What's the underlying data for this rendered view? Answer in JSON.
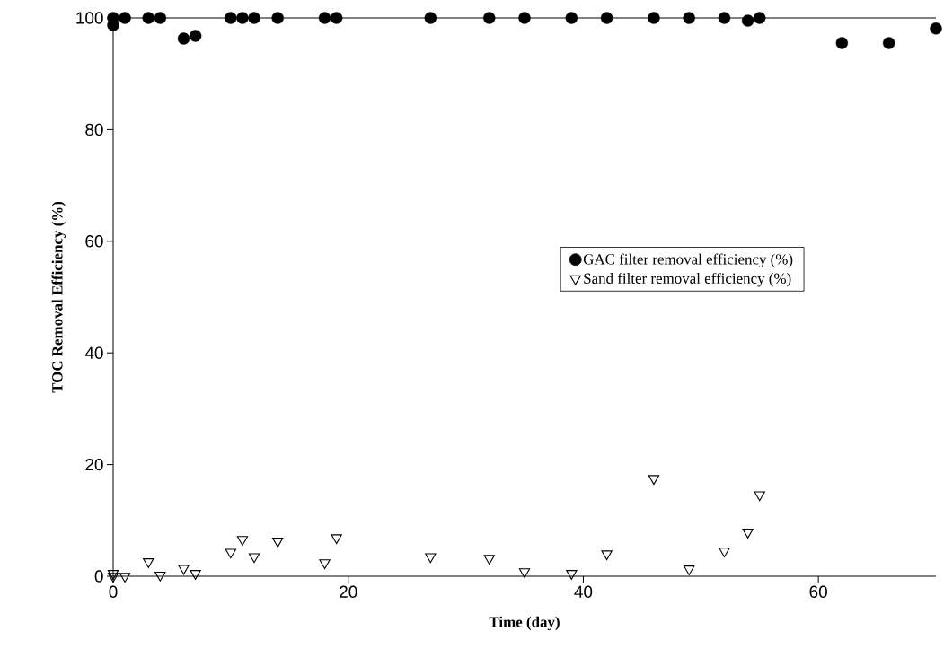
{
  "chart_data": {
    "type": "scatter",
    "xlabel": "Time (day)",
    "ylabel": "TOC Removal Efficiency (%)",
    "xlim": [
      0,
      70
    ],
    "xticks": [
      0,
      20,
      40,
      60
    ],
    "ylim": [
      0,
      100
    ],
    "yticks": [
      0,
      20,
      40,
      60,
      80,
      100
    ],
    "grid": false,
    "legend": "right",
    "series": [
      {
        "name": "GAC filter removal efficiency (%)",
        "color": "#000000",
        "marker": "circle",
        "x": [
          0,
          0,
          1,
          3,
          4,
          6,
          7,
          10,
          11,
          12,
          14,
          18,
          19,
          27,
          32,
          35,
          39,
          42,
          46,
          49,
          52,
          54,
          55,
          62,
          66,
          70
        ],
        "values": [
          98.7,
          100,
          100,
          100,
          100,
          96.3,
          96.8,
          100,
          100,
          100,
          100,
          100,
          100,
          100,
          100,
          100,
          100,
          100,
          100,
          100,
          100,
          99.5,
          100,
          95.5,
          95.5,
          98.1
        ]
      },
      {
        "name": "Sand filter removal efficiency (%)",
        "color": "#000000",
        "marker": "triangle",
        "x": [
          0,
          0,
          1,
          3,
          4,
          6,
          7,
          10,
          11,
          12,
          14,
          18,
          19,
          27,
          32,
          35,
          39,
          42,
          46,
          49,
          52,
          54,
          55
        ],
        "values": [
          0.5,
          0,
          0,
          2.6,
          0.2,
          1.4,
          0.5,
          4.3,
          6.6,
          3.5,
          6.3,
          2.4,
          6.9,
          3.5,
          3.2,
          0.8,
          0.5,
          4.0,
          17.5,
          1.3,
          4.5,
          7.9,
          14.6
        ]
      }
    ]
  }
}
